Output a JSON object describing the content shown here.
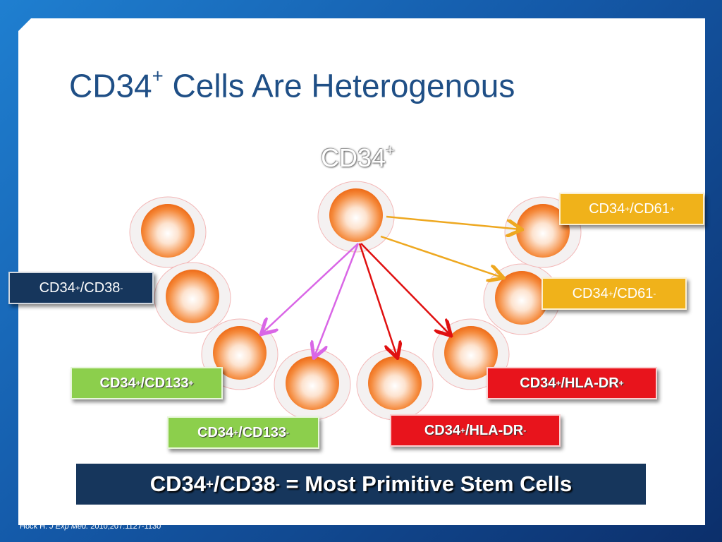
{
  "title": {
    "segments": [
      {
        "text": "CD34",
        "sup": "+"
      },
      {
        "text": " Cells Are Heterogenous"
      }
    ]
  },
  "center_label": {
    "segments": [
      {
        "text": "CD34",
        "sup": "+"
      }
    ]
  },
  "labels": [
    {
      "segments": [
        {
          "text": "CD34",
          "sup": "+"
        },
        {
          "text": "/CD61",
          "sup": "+"
        }
      ]
    },
    {
      "segments": [
        {
          "text": "CD34",
          "sup": "+"
        },
        {
          "text": "/CD61",
          "sup": "-"
        }
      ]
    },
    {
      "segments": [
        {
          "text": "CD34",
          "sup": "+"
        },
        {
          "text": "/CD38",
          "sup": "-"
        }
      ]
    },
    {
      "segments": [
        {
          "text": "CD34",
          "sup": "+"
        },
        {
          "text": "/CD133",
          "sup": "+"
        }
      ]
    },
    {
      "segments": [
        {
          "text": "CD34",
          "sup": "+"
        },
        {
          "text": "/CD133",
          "sup": "-"
        }
      ]
    },
    {
      "segments": [
        {
          "text": "CD34",
          "sup": "+"
        },
        {
          "text": "/HLA-DR",
          "sup": "+"
        }
      ]
    },
    {
      "segments": [
        {
          "text": "CD34",
          "sup": "+"
        },
        {
          "text": "/HLA-DR",
          "sup": "-"
        }
      ]
    }
  ],
  "banner": {
    "segments": [
      {
        "text": "CD34",
        "sup": "+"
      },
      {
        "text": "/CD38",
        "sup": "-"
      },
      {
        "text": " = Most Primitive Stem Cells"
      }
    ]
  },
  "citation": {
    "author": "Hock H. ",
    "journal": "J Exp Med.",
    "details": " 2010;207:1127-1130"
  }
}
